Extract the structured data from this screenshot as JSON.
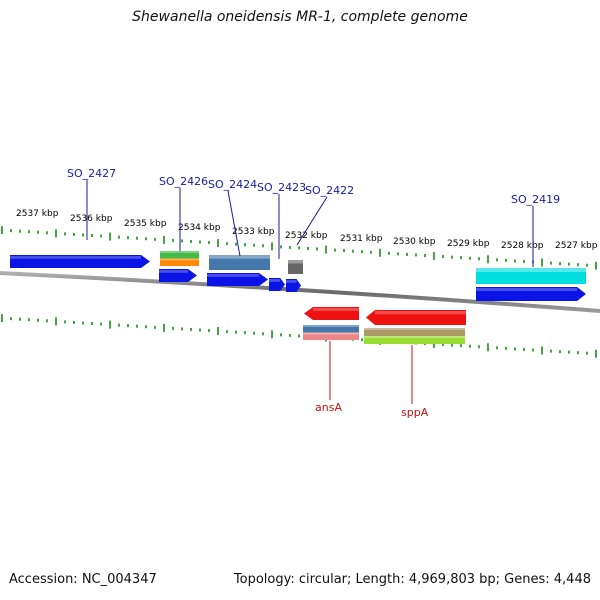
{
  "title": "Shewanella oneidensis MR-1, complete genome",
  "footer": {
    "accession": "Accession: NC_004347",
    "topology": "Topology: circular; Length: 4,969,803 bp; Genes: 4,448"
  },
  "colors": {
    "backbone": "#808080",
    "tick": "#1a8a1a",
    "forward_label": "#1a1aaa",
    "reverse_label": "#cc1111"
  },
  "position_labels": [
    "2537 kbp",
    "2536 kbp",
    "2535 kbp",
    "2534 kbp",
    "2533 kbp",
    "2532 kbp",
    "2531 kbp",
    "2530 kbp",
    "2529 kbp",
    "2528 kbp",
    "2527 kbp"
  ],
  "forward_gene_labels": [
    "SO_2427",
    "SO_2426",
    "SO_2424",
    "SO_2423",
    "SO_2422",
    "SO_2419"
  ],
  "reverse_gene_labels": [
    "ansA",
    "sppA"
  ],
  "features": {
    "forward_outer": [
      {
        "colors": [
          "#44bb44",
          "#ff8800"
        ]
      },
      {
        "colors": [
          "#4477aa"
        ]
      },
      {
        "colors": [
          "#666666"
        ]
      },
      {
        "colors": [
          "#00dddd"
        ]
      }
    ],
    "forward_cds": [
      {
        "color": "#0a14e6",
        "arrow": true
      },
      {
        "color": "#0a14e6",
        "arrow": true
      },
      {
        "color": "#0a14e6",
        "arrow": true
      },
      {
        "color": "#0a14e6",
        "arrow": true
      },
      {
        "color": "#0a14e6",
        "arrow": true
      },
      {
        "color": "#0a14e6",
        "arrow": true
      }
    ],
    "reverse_cds": [
      {
        "color": "#ee1111",
        "arrow": true
      },
      {
        "color": "#ee1111",
        "arrow": true
      }
    ],
    "reverse_outer": [
      {
        "colors": [
          "#4477aa",
          "#ee8888"
        ]
      },
      {
        "colors": [
          "#aa9966",
          "#99dd33"
        ]
      }
    ]
  }
}
